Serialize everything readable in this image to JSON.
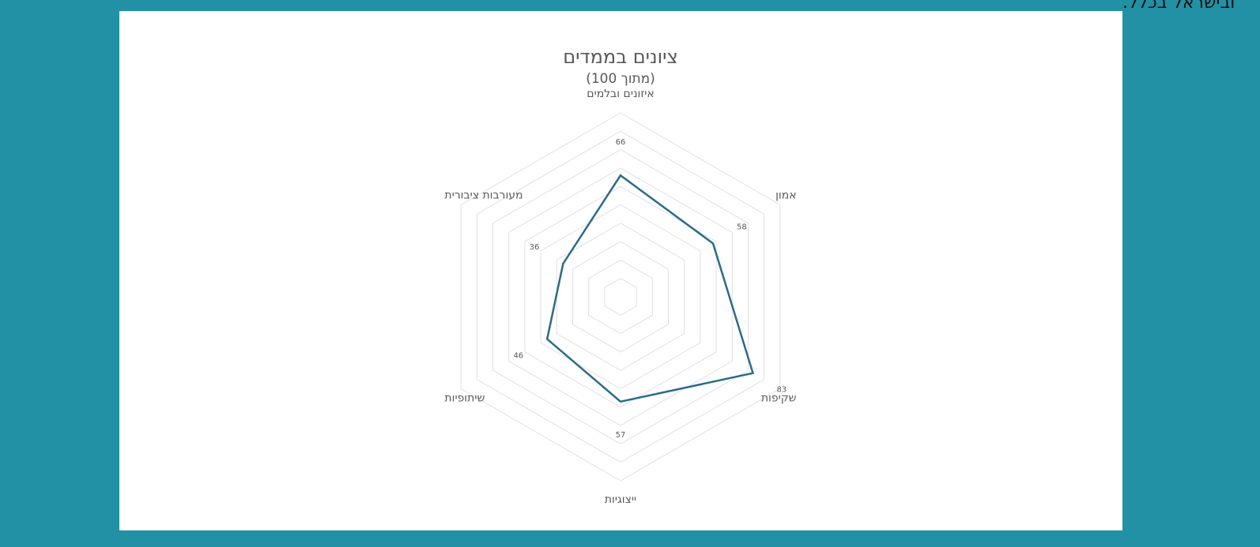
{
  "header_text": "ובישראל בכלל.",
  "chart_data": {
    "type": "radar",
    "title": "ציונים בממדים",
    "subtitle": "(מתוך 100)",
    "categories": [
      "איזונים ובלמים",
      "אמון",
      "שקיפות",
      "ייצוגיות",
      "שיתופיות",
      "מעורבות ציבורית"
    ],
    "values": [
      66,
      58,
      83,
      57,
      46,
      36
    ],
    "color": "#2a6b8a",
    "ylim": [
      0,
      100
    ],
    "yticks": [
      10,
      20,
      30,
      40,
      50,
      60,
      70,
      80,
      90,
      100
    ],
    "grid": true
  }
}
